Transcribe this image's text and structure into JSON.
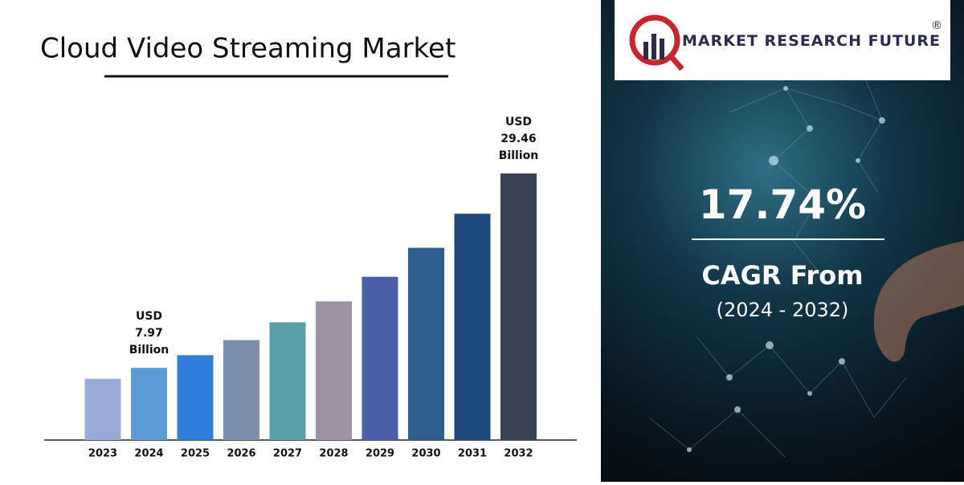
{
  "chart_data": {
    "type": "bar",
    "title": "Cloud Video Streaming Market",
    "categories": [
      "2023",
      "2024",
      "2025",
      "2026",
      "2027",
      "2028",
      "2029",
      "2030",
      "2031",
      "2032"
    ],
    "values": [
      6.77,
      7.97,
      9.38,
      11.05,
      13.01,
      15.32,
      18.04,
      21.24,
      25.01,
      29.46
    ],
    "value_labels": [
      null,
      "USD 7.97 Billion",
      null,
      null,
      null,
      null,
      null,
      null,
      null,
      "USD 29.46 Billion"
    ],
    "colors": [
      "#9aaad6",
      "#5b9bd5",
      "#2e7fd9",
      "#7a8fae",
      "#5a9fa8",
      "#9e93a5",
      "#4a5fa8",
      "#2e5f8f",
      "#1f4a7e",
      "#3b4454"
    ]
  },
  "panel": {
    "brand": "MARKET RESEARCH FUTURE",
    "registered": "®",
    "cagr": "17.74%",
    "cagr_label": "CAGR From",
    "period": "(2024 - 2032)"
  }
}
